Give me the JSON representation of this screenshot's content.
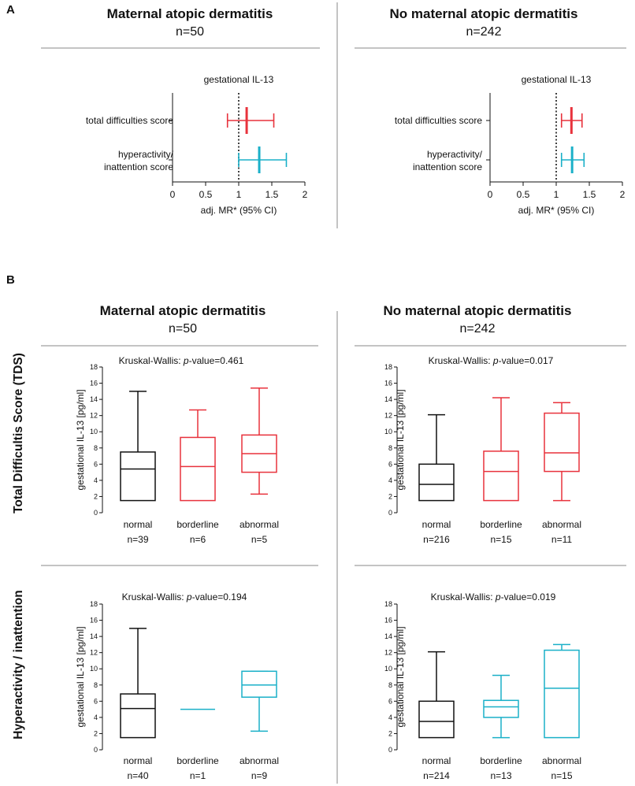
{
  "panel_a_letter": "A",
  "panel_b_letter": "B",
  "groups": [
    {
      "title": "Maternal atopic dermatitis",
      "n": "n=50"
    },
    {
      "title": "No maternal atopic dermatitis",
      "n": "n=242"
    }
  ],
  "row_labels": [
    "Total Difficultis Score (TDS)",
    "Hyperactivity / inattention"
  ],
  "colors": {
    "black": "#111111",
    "red": "#e8323c",
    "teal": "#1ab0c8",
    "rule": "#888888"
  },
  "chart_data": [
    {
      "type": "forest",
      "panel": "A",
      "group": "Maternal atopic dermatitis",
      "title": "gestational IL-13",
      "xlabel": "adj. MR* (95% CI)",
      "xlim": [
        0,
        2
      ],
      "xticks": [
        "0",
        "0.5",
        "1",
        "1.5",
        "2"
      ],
      "reference_line": 1,
      "rows": [
        {
          "label": [
            "total difficulties score"
          ],
          "estimate": 1.12,
          "ci": [
            0.83,
            1.53
          ],
          "color": "red"
        },
        {
          "label": [
            "hyperactivity/",
            "inattention score"
          ],
          "estimate": 1.31,
          "ci": [
            1.0,
            1.72
          ],
          "color": "teal"
        }
      ]
    },
    {
      "type": "forest",
      "panel": "A",
      "group": "No maternal atopic dermatitis",
      "title": "gestational IL-13",
      "xlabel": "adj. MR* (95% CI)",
      "xlim": [
        0,
        2
      ],
      "xticks": [
        "0",
        "0.5",
        "1",
        "1.5",
        "2"
      ],
      "reference_line": 1,
      "rows": [
        {
          "label": [
            "total difficulties score"
          ],
          "estimate": 1.23,
          "ci": [
            1.08,
            1.39
          ],
          "color": "red"
        },
        {
          "label": [
            "hyperactivity/",
            "inattention score"
          ],
          "estimate": 1.24,
          "ci": [
            1.08,
            1.42
          ],
          "color": "teal"
        }
      ]
    },
    {
      "type": "box",
      "panel": "B",
      "group": "Maternal atopic dermatitis",
      "outcome": "TDS",
      "title_prefix": "Kruskal-Wallis: ",
      "title_italic": "p",
      "title_suffix": "-value=0.461",
      "ylabel": "gestational IL-13 [pg/ml]",
      "ylim": [
        0,
        18
      ],
      "yticks": [
        "0",
        "2",
        "4",
        "6",
        "8",
        "10",
        "12",
        "14",
        "16",
        "18"
      ],
      "boxes": [
        {
          "category": "normal",
          "n": "n=39",
          "color": "black",
          "min": 1.5,
          "q1": 1.5,
          "median": 5.4,
          "q3": 7.5,
          "max": 15.0
        },
        {
          "category": "borderline",
          "n": "n=6",
          "color": "red",
          "min": 1.5,
          "q1": 1.5,
          "median": 5.7,
          "q3": 9.3,
          "max": 12.7
        },
        {
          "category": "abnormal",
          "n": "n=5",
          "color": "red",
          "min": 2.3,
          "q1": 5.0,
          "median": 7.3,
          "q3": 9.6,
          "max": 15.4
        }
      ]
    },
    {
      "type": "box",
      "panel": "B",
      "group": "No maternal atopic dermatitis",
      "outcome": "TDS",
      "title_prefix": "Kruskal-Wallis: ",
      "title_italic": "p",
      "title_suffix": "-value=0.017",
      "ylabel": "gestational IL-13 [pg/ml]",
      "ylim": [
        0,
        18
      ],
      "yticks": [
        "0",
        "2",
        "4",
        "6",
        "8",
        "10",
        "12",
        "14",
        "16",
        "18"
      ],
      "boxes": [
        {
          "category": "normal",
          "n": "n=216",
          "color": "black",
          "min": 1.5,
          "q1": 1.5,
          "median": 3.5,
          "q3": 6.0,
          "max": 12.1
        },
        {
          "category": "borderline",
          "n": "n=15",
          "color": "red",
          "min": 1.5,
          "q1": 1.5,
          "median": 5.1,
          "q3": 7.6,
          "max": 14.2
        },
        {
          "category": "abnormal",
          "n": "n=11",
          "color": "red",
          "min": 1.5,
          "q1": 5.1,
          "median": 7.4,
          "q3": 12.3,
          "max": 13.6
        }
      ]
    },
    {
      "type": "box",
      "panel": "B",
      "group": "Maternal atopic dermatitis",
      "outcome": "Hyperactivity / inattention",
      "title_prefix": "Kruskal-Wallis: ",
      "title_italic": "p",
      "title_suffix": "-value=0.194",
      "ylabel": "gestational IL-13 [pg/ml]",
      "ylim": [
        0,
        18
      ],
      "yticks": [
        "0",
        "2",
        "4",
        "6",
        "8",
        "10",
        "12",
        "14",
        "16",
        "18"
      ],
      "boxes": [
        {
          "category": "normal",
          "n": "n=40",
          "color": "black",
          "min": 1.5,
          "q1": 1.5,
          "median": 5.1,
          "q3": 6.9,
          "max": 15.0
        },
        {
          "category": "borderline",
          "n": "n=1",
          "color": "teal",
          "min": 5.0,
          "q1": 5.0,
          "median": 5.0,
          "q3": 5.0,
          "max": 5.0
        },
        {
          "category": "abnormal",
          "n": "n=9",
          "color": "teal",
          "min": 2.3,
          "q1": 6.5,
          "median": 8.0,
          "q3": 9.7,
          "max": 9.7
        }
      ]
    },
    {
      "type": "box",
      "panel": "B",
      "group": "No maternal atopic dermatitis",
      "outcome": "Hyperactivity / inattention",
      "title_prefix": "Kruskal-Wallis: ",
      "title_italic": "p",
      "title_suffix": "-value=0.019",
      "ylabel": "gestational IL-13 [pg/ml]",
      "ylim": [
        0,
        18
      ],
      "yticks": [
        "0",
        "2",
        "4",
        "6",
        "8",
        "10",
        "12",
        "14",
        "16",
        "18"
      ],
      "boxes": [
        {
          "category": "normal",
          "n": "n=214",
          "color": "black",
          "min": 1.5,
          "q1": 1.5,
          "median": 3.5,
          "q3": 6.0,
          "max": 12.1
        },
        {
          "category": "borderline",
          "n": "n=13",
          "color": "teal",
          "min": 1.5,
          "q1": 4.0,
          "median": 5.3,
          "q3": 6.1,
          "max": 9.2
        },
        {
          "category": "abnormal",
          "n": "n=15",
          "color": "teal",
          "min": 1.5,
          "q1": 1.5,
          "median": 7.6,
          "q3": 12.3,
          "max": 13.0
        }
      ]
    }
  ]
}
